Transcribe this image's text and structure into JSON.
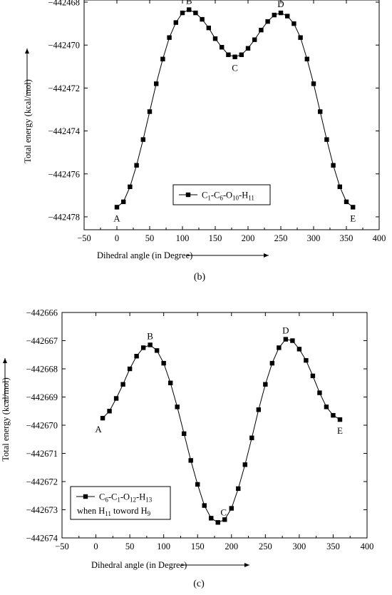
{
  "chart_data": [
    {
      "type": "line",
      "caption": "(b)",
      "xlabel": "Dihedral angle (in Degree)",
      "ylabel": "Total energy (kcal/mol)",
      "xlim": [
        -50,
        400
      ],
      "ylim": [
        -442478.6,
        -442467.9
      ],
      "xticks": [
        -50,
        0,
        50,
        100,
        150,
        200,
        250,
        300,
        350,
        400
      ],
      "yticks": [
        -442468,
        -442470,
        -442472,
        -442474,
        -442476,
        -442478
      ],
      "grid": false,
      "legend_position": "lower-middle",
      "series": [
        {
          "name": "C1-C6-O10-H11",
          "legend": {
            "parts": [
              "C",
              "1",
              "-C",
              "6",
              "-O",
              "10",
              "-H",
              "11"
            ]
          },
          "marker": "square",
          "x": [
            0,
            10,
            20,
            30,
            40,
            50,
            60,
            70,
            80,
            90,
            100,
            110,
            120,
            130,
            140,
            150,
            160,
            170,
            180,
            190,
            200,
            210,
            220,
            230,
            240,
            250,
            260,
            270,
            280,
            290,
            300,
            310,
            320,
            330,
            340,
            350,
            360
          ],
          "y": [
            -442477.55,
            -442477.3,
            -442476.6,
            -442475.6,
            -442474.4,
            -442473.1,
            -442471.8,
            -442470.65,
            -442469.65,
            -442468.95,
            -442468.5,
            -442468.35,
            -442468.5,
            -442468.8,
            -442469.2,
            -442469.7,
            -442470.1,
            -442470.45,
            -442470.55,
            -442470.45,
            -442470.15,
            -442469.75,
            -442469.3,
            -442468.9,
            -442468.6,
            -442468.5,
            -442468.65,
            -442469.0,
            -442469.65,
            -442470.65,
            -442471.8,
            -442473.1,
            -442474.4,
            -442475.6,
            -442476.6,
            -442477.3,
            -442477.55
          ]
        }
      ],
      "annotations": [
        {
          "text": "A",
          "x": 0,
          "y": -442477.55,
          "pos": "below"
        },
        {
          "text": "B",
          "x": 110,
          "y": -442468.35,
          "pos": "above"
        },
        {
          "text": "C",
          "x": 180,
          "y": -442470.55,
          "pos": "below"
        },
        {
          "text": "D",
          "x": 250,
          "y": -442468.5,
          "pos": "above"
        },
        {
          "text": "E",
          "x": 360,
          "y": -442477.55,
          "pos": "below"
        }
      ]
    },
    {
      "type": "line",
      "caption": "(c)",
      "xlabel": "Dihedral angle (in Degree)",
      "ylabel": "Total energy (kcal/mol)",
      "xlim": [
        -50,
        400
      ],
      "ylim": [
        -442674,
        -442666
      ],
      "xticks": [
        -50,
        0,
        50,
        100,
        150,
        200,
        250,
        300,
        350,
        400
      ],
      "yticks": [
        -442666,
        -442667,
        -442668,
        -442669,
        -442670,
        -442671,
        -442672,
        -442673,
        -442674
      ],
      "grid": false,
      "legend_position": "lower-left",
      "series": [
        {
          "name": "C6-C1-O12-H13 when H11 toword H9",
          "legend": {
            "parts": [
              "C",
              "6",
              "-C",
              "1",
              "-O",
              "12",
              "-H",
              "13"
            ],
            "line2": [
              "when H",
              "11",
              " toword H",
              "9"
            ]
          },
          "marker": "square",
          "x": [
            10,
            20,
            30,
            40,
            50,
            60,
            70,
            80,
            90,
            100,
            110,
            120,
            130,
            140,
            150,
            160,
            170,
            180,
            190,
            200,
            210,
            220,
            230,
            240,
            250,
            260,
            270,
            280,
            290,
            300,
            310,
            320,
            330,
            340,
            350,
            360
          ],
          "y": [
            -442669.75,
            -442669.5,
            -442669.05,
            -442668.55,
            -442668.0,
            -442667.55,
            -442667.25,
            -442667.15,
            -442667.35,
            -442667.8,
            -442668.5,
            -442669.35,
            -442670.3,
            -442671.25,
            -442672.1,
            -442672.85,
            -442673.3,
            -442673.45,
            -442673.35,
            -442672.95,
            -442672.25,
            -442671.4,
            -442670.45,
            -442669.45,
            -442668.55,
            -442667.8,
            -442667.25,
            -442666.95,
            -442667.0,
            -442667.3,
            -442667.7,
            -442668.25,
            -442668.85,
            -442669.35,
            -442669.65,
            -442669.8
          ]
        }
      ],
      "annotations": [
        {
          "text": "A",
          "x": 10,
          "y": -442669.75,
          "pos": "below-left"
        },
        {
          "text": "B",
          "x": 80,
          "y": -442667.15,
          "pos": "above"
        },
        {
          "text": "C",
          "x": 180,
          "y": -442673.45,
          "pos": "above-right"
        },
        {
          "text": "D",
          "x": 280,
          "y": -442666.95,
          "pos": "above"
        },
        {
          "text": "E",
          "x": 360,
          "y": -442669.8,
          "pos": "below"
        }
      ]
    }
  ]
}
